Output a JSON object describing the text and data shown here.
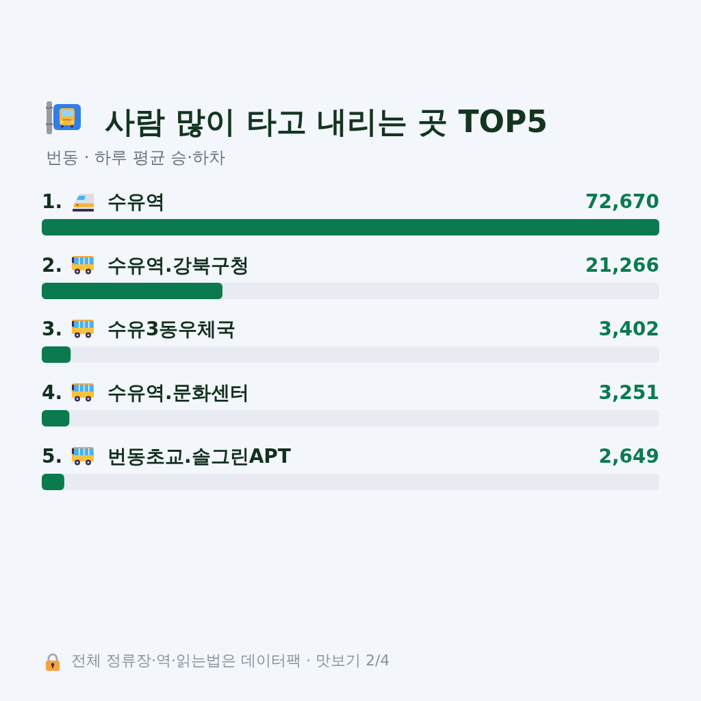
{
  "chart_data": {
    "type": "bar",
    "orientation": "horizontal",
    "title": "사람 많이 타고 내리는 곳 TOP5",
    "subtitle": "번동 · 하루 평균 승·하차",
    "categories": [
      "1. 수유역",
      "2. 수유역.강북구청",
      "3. 수유3동우체국",
      "4. 수유역.문화센터",
      "5. 번동초교.솔그린APT"
    ],
    "values": [
      72670,
      21266,
      3402,
      3251,
      2649
    ],
    "value_labels": [
      "72,670",
      "21,266",
      "3,402",
      "3,251",
      "2,649"
    ],
    "color": "#0b7a4f",
    "tick_labels": "y",
    "annotations": [
      "전체 정류장·역·읽는법은 데이터팩 · 맛보기 2/4"
    ]
  }
}
